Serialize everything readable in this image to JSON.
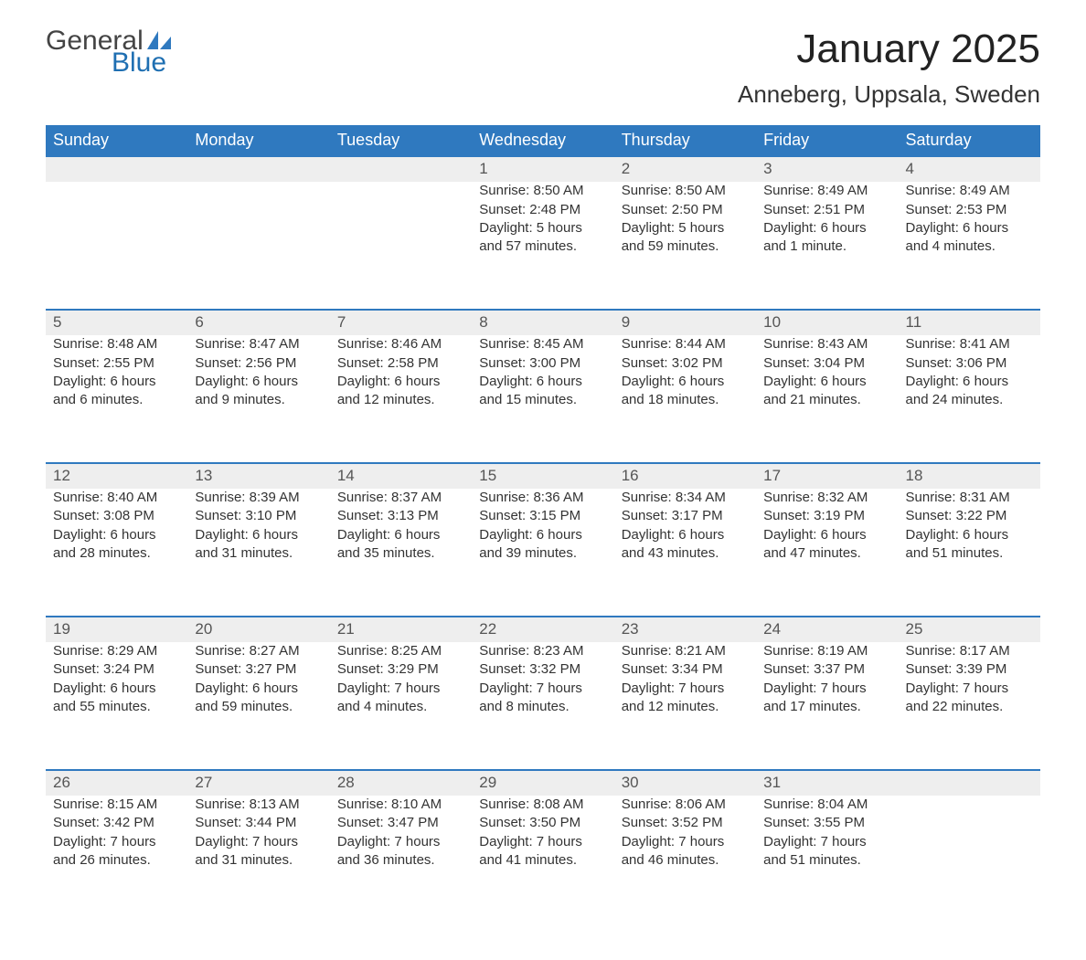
{
  "logo": {
    "text1": "General",
    "text2": "Blue",
    "sail_color": "#2f79bf"
  },
  "title": "January 2025",
  "location": "Anneberg, Uppsala, Sweden",
  "colors": {
    "header_bg": "#2f79bf",
    "header_fg": "#ffffff",
    "daynum_bg": "#eeeeee",
    "daynum_border": "#2f79bf",
    "text": "#333333",
    "bg": "#ffffff"
  },
  "weekdays": [
    "Sunday",
    "Monday",
    "Tuesday",
    "Wednesday",
    "Thursday",
    "Friday",
    "Saturday"
  ],
  "weeks": [
    [
      null,
      null,
      null,
      {
        "n": "1",
        "sunrise": "Sunrise: 8:50 AM",
        "sunset": "Sunset: 2:48 PM",
        "dl1": "Daylight: 5 hours",
        "dl2": "and 57 minutes."
      },
      {
        "n": "2",
        "sunrise": "Sunrise: 8:50 AM",
        "sunset": "Sunset: 2:50 PM",
        "dl1": "Daylight: 5 hours",
        "dl2": "and 59 minutes."
      },
      {
        "n": "3",
        "sunrise": "Sunrise: 8:49 AM",
        "sunset": "Sunset: 2:51 PM",
        "dl1": "Daylight: 6 hours",
        "dl2": "and 1 minute."
      },
      {
        "n": "4",
        "sunrise": "Sunrise: 8:49 AM",
        "sunset": "Sunset: 2:53 PM",
        "dl1": "Daylight: 6 hours",
        "dl2": "and 4 minutes."
      }
    ],
    [
      {
        "n": "5",
        "sunrise": "Sunrise: 8:48 AM",
        "sunset": "Sunset: 2:55 PM",
        "dl1": "Daylight: 6 hours",
        "dl2": "and 6 minutes."
      },
      {
        "n": "6",
        "sunrise": "Sunrise: 8:47 AM",
        "sunset": "Sunset: 2:56 PM",
        "dl1": "Daylight: 6 hours",
        "dl2": "and 9 minutes."
      },
      {
        "n": "7",
        "sunrise": "Sunrise: 8:46 AM",
        "sunset": "Sunset: 2:58 PM",
        "dl1": "Daylight: 6 hours",
        "dl2": "and 12 minutes."
      },
      {
        "n": "8",
        "sunrise": "Sunrise: 8:45 AM",
        "sunset": "Sunset: 3:00 PM",
        "dl1": "Daylight: 6 hours",
        "dl2": "and 15 minutes."
      },
      {
        "n": "9",
        "sunrise": "Sunrise: 8:44 AM",
        "sunset": "Sunset: 3:02 PM",
        "dl1": "Daylight: 6 hours",
        "dl2": "and 18 minutes."
      },
      {
        "n": "10",
        "sunrise": "Sunrise: 8:43 AM",
        "sunset": "Sunset: 3:04 PM",
        "dl1": "Daylight: 6 hours",
        "dl2": "and 21 minutes."
      },
      {
        "n": "11",
        "sunrise": "Sunrise: 8:41 AM",
        "sunset": "Sunset: 3:06 PM",
        "dl1": "Daylight: 6 hours",
        "dl2": "and 24 minutes."
      }
    ],
    [
      {
        "n": "12",
        "sunrise": "Sunrise: 8:40 AM",
        "sunset": "Sunset: 3:08 PM",
        "dl1": "Daylight: 6 hours",
        "dl2": "and 28 minutes."
      },
      {
        "n": "13",
        "sunrise": "Sunrise: 8:39 AM",
        "sunset": "Sunset: 3:10 PM",
        "dl1": "Daylight: 6 hours",
        "dl2": "and 31 minutes."
      },
      {
        "n": "14",
        "sunrise": "Sunrise: 8:37 AM",
        "sunset": "Sunset: 3:13 PM",
        "dl1": "Daylight: 6 hours",
        "dl2": "and 35 minutes."
      },
      {
        "n": "15",
        "sunrise": "Sunrise: 8:36 AM",
        "sunset": "Sunset: 3:15 PM",
        "dl1": "Daylight: 6 hours",
        "dl2": "and 39 minutes."
      },
      {
        "n": "16",
        "sunrise": "Sunrise: 8:34 AM",
        "sunset": "Sunset: 3:17 PM",
        "dl1": "Daylight: 6 hours",
        "dl2": "and 43 minutes."
      },
      {
        "n": "17",
        "sunrise": "Sunrise: 8:32 AM",
        "sunset": "Sunset: 3:19 PM",
        "dl1": "Daylight: 6 hours",
        "dl2": "and 47 minutes."
      },
      {
        "n": "18",
        "sunrise": "Sunrise: 8:31 AM",
        "sunset": "Sunset: 3:22 PM",
        "dl1": "Daylight: 6 hours",
        "dl2": "and 51 minutes."
      }
    ],
    [
      {
        "n": "19",
        "sunrise": "Sunrise: 8:29 AM",
        "sunset": "Sunset: 3:24 PM",
        "dl1": "Daylight: 6 hours",
        "dl2": "and 55 minutes."
      },
      {
        "n": "20",
        "sunrise": "Sunrise: 8:27 AM",
        "sunset": "Sunset: 3:27 PM",
        "dl1": "Daylight: 6 hours",
        "dl2": "and 59 minutes."
      },
      {
        "n": "21",
        "sunrise": "Sunrise: 8:25 AM",
        "sunset": "Sunset: 3:29 PM",
        "dl1": "Daylight: 7 hours",
        "dl2": "and 4 minutes."
      },
      {
        "n": "22",
        "sunrise": "Sunrise: 8:23 AM",
        "sunset": "Sunset: 3:32 PM",
        "dl1": "Daylight: 7 hours",
        "dl2": "and 8 minutes."
      },
      {
        "n": "23",
        "sunrise": "Sunrise: 8:21 AM",
        "sunset": "Sunset: 3:34 PM",
        "dl1": "Daylight: 7 hours",
        "dl2": "and 12 minutes."
      },
      {
        "n": "24",
        "sunrise": "Sunrise: 8:19 AM",
        "sunset": "Sunset: 3:37 PM",
        "dl1": "Daylight: 7 hours",
        "dl2": "and 17 minutes."
      },
      {
        "n": "25",
        "sunrise": "Sunrise: 8:17 AM",
        "sunset": "Sunset: 3:39 PM",
        "dl1": "Daylight: 7 hours",
        "dl2": "and 22 minutes."
      }
    ],
    [
      {
        "n": "26",
        "sunrise": "Sunrise: 8:15 AM",
        "sunset": "Sunset: 3:42 PM",
        "dl1": "Daylight: 7 hours",
        "dl2": "and 26 minutes."
      },
      {
        "n": "27",
        "sunrise": "Sunrise: 8:13 AM",
        "sunset": "Sunset: 3:44 PM",
        "dl1": "Daylight: 7 hours",
        "dl2": "and 31 minutes."
      },
      {
        "n": "28",
        "sunrise": "Sunrise: 8:10 AM",
        "sunset": "Sunset: 3:47 PM",
        "dl1": "Daylight: 7 hours",
        "dl2": "and 36 minutes."
      },
      {
        "n": "29",
        "sunrise": "Sunrise: 8:08 AM",
        "sunset": "Sunset: 3:50 PM",
        "dl1": "Daylight: 7 hours",
        "dl2": "and 41 minutes."
      },
      {
        "n": "30",
        "sunrise": "Sunrise: 8:06 AM",
        "sunset": "Sunset: 3:52 PM",
        "dl1": "Daylight: 7 hours",
        "dl2": "and 46 minutes."
      },
      {
        "n": "31",
        "sunrise": "Sunrise: 8:04 AM",
        "sunset": "Sunset: 3:55 PM",
        "dl1": "Daylight: 7 hours",
        "dl2": "and 51 minutes."
      },
      null
    ]
  ]
}
